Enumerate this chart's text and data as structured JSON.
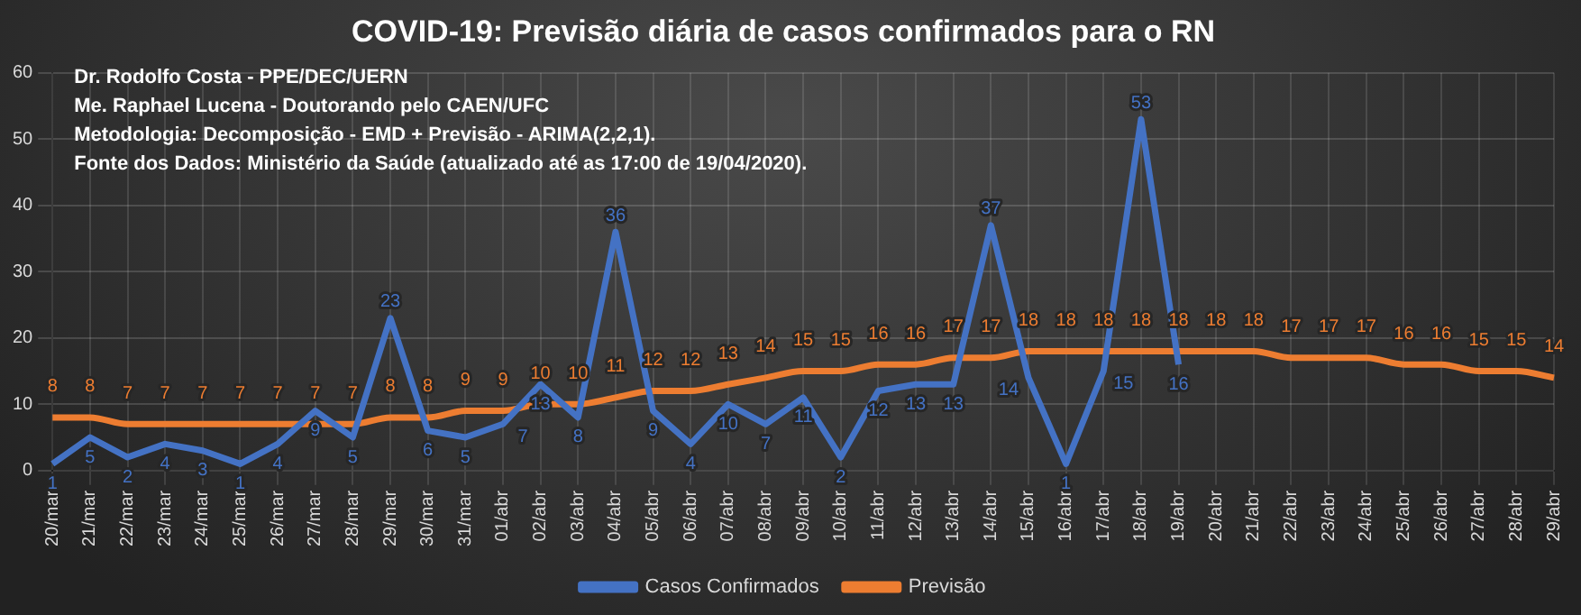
{
  "chart_data": {
    "type": "line",
    "title": "COVID-19: Previsão diária de casos confirmados para o RN",
    "categories": [
      "20/mar",
      "21/mar",
      "22/mar",
      "23/mar",
      "24/mar",
      "25/mar",
      "26/mar",
      "27/mar",
      "28/mar",
      "29/mar",
      "30/mar",
      "31/mar",
      "01/abr",
      "02/abr",
      "03/abr",
      "04/abr",
      "05/abr",
      "06/abr",
      "07/abr",
      "08/abr",
      "09/abr",
      "10/abr",
      "11/abr",
      "12/abr",
      "13/abr",
      "14/abr",
      "15/abr",
      "16/abr",
      "17/abr",
      "18/abr",
      "19/abr",
      "20/abr",
      "21/abr",
      "22/abr",
      "23/abr",
      "24/abr",
      "25/abr",
      "26/abr",
      "27/abr",
      "28/abr",
      "29/abr"
    ],
    "series": [
      {
        "name": "Casos Confirmados",
        "color": "#4472c4",
        "values": [
          1,
          5,
          2,
          4,
          3,
          1,
          4,
          9,
          5,
          23,
          6,
          5,
          7,
          13,
          8,
          36,
          9,
          4,
          10,
          7,
          11,
          2,
          12,
          13,
          13,
          37,
          14,
          1,
          15,
          53,
          16,
          null,
          null,
          null,
          null,
          null,
          null,
          null,
          null,
          null,
          null
        ]
      },
      {
        "name": "Previsão",
        "color": "#ed7d31",
        "values": [
          8,
          8,
          7,
          7,
          7,
          7,
          7,
          7,
          7,
          8,
          8,
          9,
          9,
          10,
          10,
          11,
          12,
          12,
          13,
          14,
          15,
          15,
          16,
          16,
          17,
          17,
          18,
          18,
          18,
          18,
          18,
          18,
          18,
          17,
          17,
          17,
          16,
          16,
          15,
          15,
          14
        ]
      }
    ],
    "ylim": [
      0,
      60
    ],
    "yticks": [
      0,
      10,
      20,
      30,
      40,
      50,
      60
    ],
    "grid": true,
    "legend": "bottom",
    "data_labels": true,
    "marker": "none",
    "annotations": [
      "Dr. Rodolfo Costa - PPE/DEC/UERN",
      "Me. Raphael Lucena - Doutorando pelo CAEN/UFC",
      "Metodologia: Decomposição - EMD + Previsão - ARIMA(2,2,1).",
      "Fonte dos Dados: Ministério da Saúde (atualizado até as 17:00 de 19/04/2020)."
    ]
  }
}
